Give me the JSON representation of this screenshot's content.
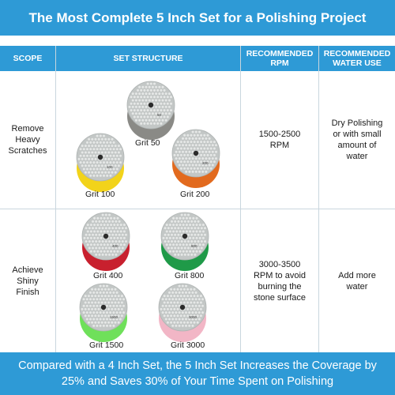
{
  "title": "The Most Complete 5 Inch Set for a Polishing Project",
  "table": {
    "headers": {
      "scope": "SCOPE",
      "structure": "SET STRUCTURE",
      "rpm": "RECOMMENDED RPM",
      "water": "RECOMMENDED WATER USE"
    },
    "rows": [
      {
        "scope": "Remove Heavy Scratches",
        "rpm": "1500-2500 RPM",
        "water": "Dry Polishing or with small amount of water",
        "pads": [
          {
            "grit": "Grit 50",
            "label": "50",
            "color": "#8a8a86"
          },
          {
            "grit": "Grit 100",
            "label": "100",
            "color": "#f2d31a"
          },
          {
            "grit": "Grit 200",
            "label": "200",
            "color": "#e26a1e"
          }
        ]
      },
      {
        "scope": "Achieve Shiny Finish",
        "rpm": "3000-3500 RPM to avoid burning the stone surface",
        "water": "Add more water",
        "pads": [
          {
            "grit": "Grit 400",
            "label": "400",
            "color": "#c8202e"
          },
          {
            "grit": "Grit 800",
            "label": "800",
            "color": "#1f9a48"
          },
          {
            "grit": "Grit 1500",
            "label": "1500",
            "color": "#6fe05a"
          },
          {
            "grit": "Grit 3000",
            "label": "3000",
            "color": "#f2b6c6"
          }
        ]
      }
    ]
  },
  "footer": "Compared with a 4 Inch Set, the 5 Inch Set Increases the Coverage by 25% and Saves 30% of Your Time Spent on Polishing"
}
